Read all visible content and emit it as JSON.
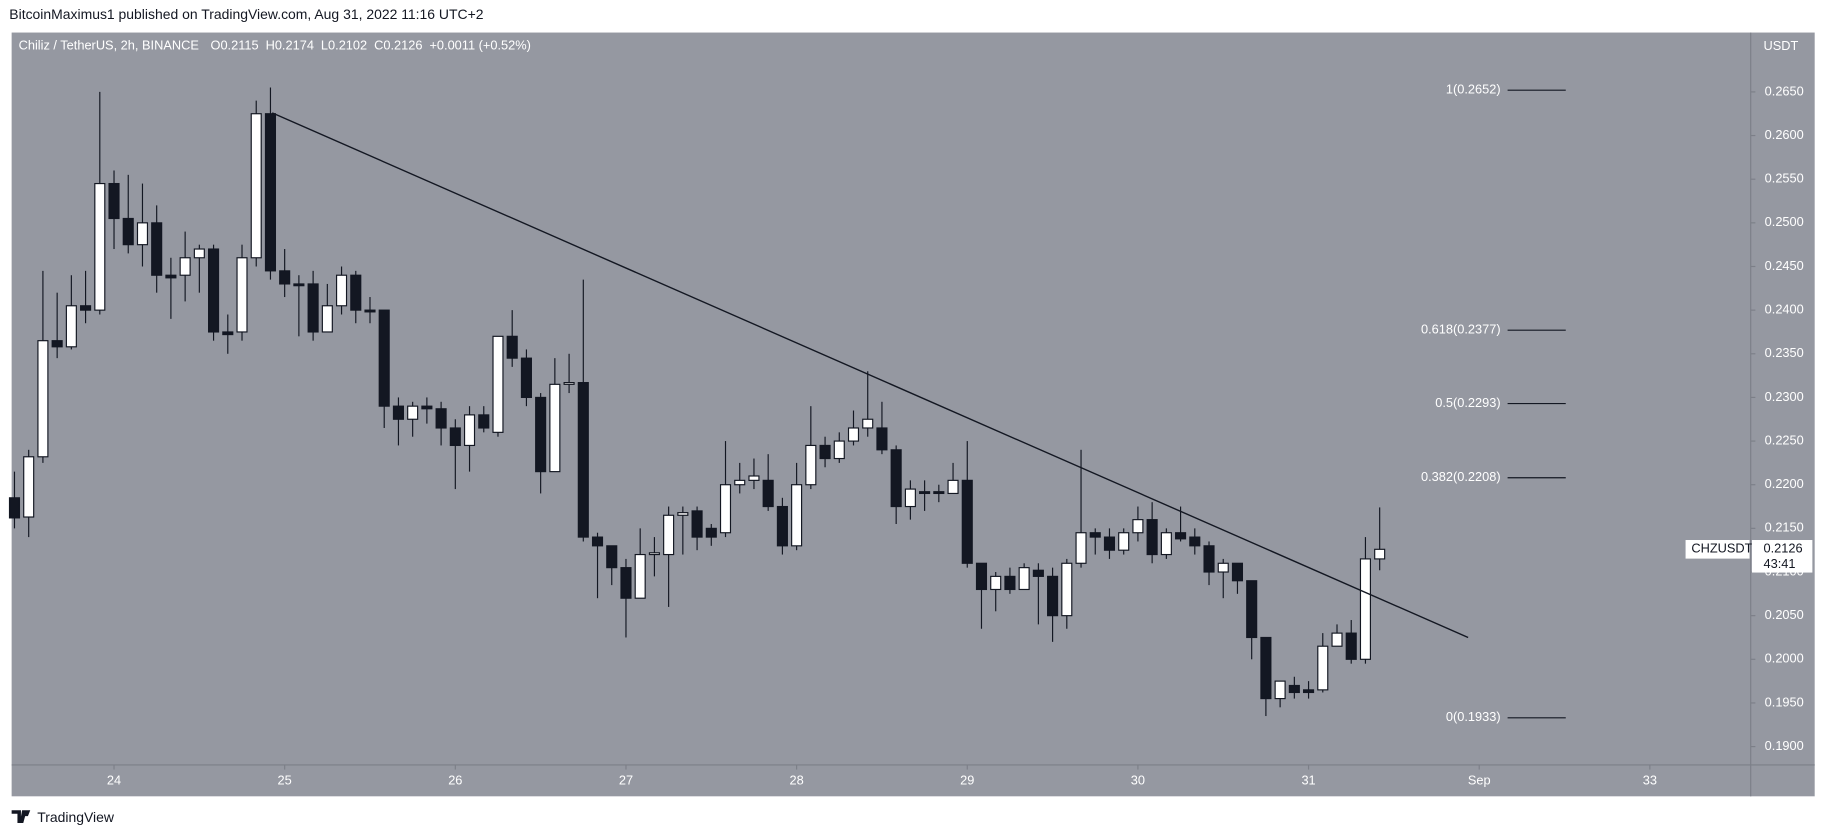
{
  "published": "BitcoinMaximus1 published on TradingView.com, Aug 31, 2022 11:16 UTC+2",
  "brand": "TradingView",
  "chart_data": {
    "type": "candlestick",
    "title": "Chiliz / TetherUS, 2h, BINANCE",
    "ohlc": [
      {
        "key": "O",
        "value": "0.2115"
      },
      {
        "key": "H",
        "value": "0.2174"
      },
      {
        "key": "L",
        "value": "0.2102"
      },
      {
        "key": "C",
        "value": "0.2126"
      }
    ],
    "change": "+0.0011 (+0.52%)",
    "y_axis_label": "USDT",
    "up_color": "#ffffff",
    "down_color": "#131722",
    "background": "#9598a1",
    "grid": false,
    "x": [
      23.4167,
      23.5,
      23.5833,
      23.6667,
      23.75,
      23.8333,
      23.9167,
      24,
      24.0833,
      24.1667,
      24.25,
      24.3333,
      24.4167,
      24.5,
      24.5833,
      24.6667,
      24.75,
      24.8333,
      24.9167,
      25,
      25.0833,
      25.1667,
      25.25,
      25.3333,
      25.4167,
      25.5,
      25.5833,
      25.6667,
      25.75,
      25.8333,
      25.9167,
      26,
      26.0833,
      26.1667,
      26.25,
      26.3333,
      26.4167,
      26.5,
      26.5833,
      26.6667,
      26.75,
      26.8333,
      26.9167,
      27,
      27.0833,
      27.1667,
      27.25,
      27.3333,
      27.4167,
      27.5,
      27.5833,
      27.6667,
      27.75,
      27.8333,
      27.9167,
      28,
      28.0833,
      28.1667,
      28.25,
      28.3333,
      28.4167,
      28.5,
      28.5833,
      28.6667,
      28.75,
      28.8333,
      28.9167,
      29,
      29.0833,
      29.1667,
      29.25,
      29.3333,
      29.4167,
      29.5,
      29.5833,
      29.6667,
      29.75,
      29.8333,
      29.9167,
      30,
      30.0833,
      30.1667,
      30.25,
      30.3333,
      30.4167,
      30.5,
      30.5833,
      30.6667,
      30.75,
      30.8333,
      30.9167,
      31,
      31.0833,
      31.1667,
      31.25,
      31.3333,
      31.4167
    ],
    "open": [
      0.2185,
      0.2163,
      0.2232,
      0.2365,
      0.2358,
      0.2405,
      0.24,
      0.2545,
      0.2505,
      0.2475,
      0.25,
      0.244,
      0.244,
      0.246,
      0.247,
      0.2375,
      0.2375,
      0.246,
      0.2625,
      0.2445,
      0.243,
      0.243,
      0.2375,
      0.2405,
      0.244,
      0.24,
      0.24,
      0.229,
      0.2275,
      0.229,
      0.2287,
      0.2265,
      0.2245,
      0.228,
      0.226,
      0.237,
      0.2345,
      0.23,
      0.2215,
      0.2315,
      0.2317,
      0.214,
      0.213,
      0.2105,
      0.207,
      0.212,
      0.212,
      0.2165,
      0.217,
      0.215,
      0.2145,
      0.22,
      0.2205,
      0.2205,
      0.2175,
      0.213,
      0.22,
      0.2245,
      0.223,
      0.225,
      0.2265,
      0.2265,
      0.224,
      0.2175,
      0.2192,
      0.2192,
      0.219,
      0.2205,
      0.211,
      0.208,
      0.2095,
      0.208,
      0.2102,
      0.2095,
      0.205,
      0.211,
      0.2145,
      0.214,
      0.2125,
      0.2145,
      0.216,
      0.212,
      0.2145,
      0.214,
      0.213,
      0.21,
      0.211,
      0.209,
      0.2025,
      0.1955,
      0.197,
      0.1965,
      0.1965,
      0.2015,
      0.203,
      0.2,
      0.2115
    ],
    "high": [
      0.2215,
      0.224,
      0.2445,
      0.242,
      0.244,
      0.2445,
      0.265,
      0.256,
      0.2555,
      0.2545,
      0.252,
      0.246,
      0.249,
      0.2475,
      0.2475,
      0.2395,
      0.2475,
      0.264,
      0.2655,
      0.247,
      0.244,
      0.2445,
      0.243,
      0.245,
      0.2445,
      0.2415,
      0.24,
      0.23,
      0.2295,
      0.23,
      0.2295,
      0.2275,
      0.229,
      0.229,
      0.237,
      0.24,
      0.2355,
      0.2305,
      0.2345,
      0.235,
      0.2435,
      0.2145,
      0.213,
      0.2115,
      0.215,
      0.214,
      0.2175,
      0.2175,
      0.2175,
      0.2155,
      0.225,
      0.2225,
      0.223,
      0.2235,
      0.2185,
      0.2225,
      0.229,
      0.2255,
      0.226,
      0.2285,
      0.233,
      0.2295,
      0.2245,
      0.2205,
      0.2205,
      0.22,
      0.2225,
      0.225,
      0.211,
      0.21,
      0.2105,
      0.211,
      0.211,
      0.2105,
      0.2115,
      0.224,
      0.215,
      0.215,
      0.215,
      0.2175,
      0.218,
      0.215,
      0.2175,
      0.215,
      0.2135,
      0.2115,
      0.211,
      0.209,
      0.2025,
      0.1975,
      0.198,
      0.1975,
      0.203,
      0.204,
      0.2045,
      0.214,
      0.2174
    ],
    "low": [
      0.215,
      0.214,
      0.2225,
      0.2345,
      0.2355,
      0.2385,
      0.2395,
      0.247,
      0.2465,
      0.245,
      0.242,
      0.239,
      0.241,
      0.242,
      0.2365,
      0.235,
      0.2365,
      0.245,
      0.2435,
      0.2415,
      0.237,
      0.2365,
      0.2375,
      0.2395,
      0.2385,
      0.2385,
      0.2265,
      0.2245,
      0.2255,
      0.227,
      0.2245,
      0.2195,
      0.2215,
      0.226,
      0.2255,
      0.2335,
      0.229,
      0.219,
      0.2215,
      0.2305,
      0.2135,
      0.207,
      0.2085,
      0.2025,
      0.207,
      0.2095,
      0.206,
      0.212,
      0.2125,
      0.213,
      0.214,
      0.219,
      0.2195,
      0.217,
      0.212,
      0.2125,
      0.2195,
      0.222,
      0.2225,
      0.2245,
      0.2255,
      0.2235,
      0.2155,
      0.216,
      0.217,
      0.218,
      0.219,
      0.2105,
      0.2035,
      0.2055,
      0.2075,
      0.208,
      0.204,
      0.202,
      0.2035,
      0.2105,
      0.212,
      0.2115,
      0.212,
      0.2135,
      0.211,
      0.2115,
      0.2135,
      0.212,
      0.2085,
      0.207,
      0.2075,
      0.2,
      0.1935,
      0.1945,
      0.1955,
      0.1955,
      0.1962,
      0.2015,
      0.1995,
      0.1995,
      0.2102
    ],
    "close": [
      0.2162,
      0.2232,
      0.2365,
      0.2358,
      0.2405,
      0.24,
      0.2545,
      0.2505,
      0.2475,
      0.25,
      0.244,
      0.2437,
      0.246,
      0.247,
      0.2375,
      0.2372,
      0.246,
      0.2625,
      0.2445,
      0.243,
      0.2428,
      0.2375,
      0.2405,
      0.244,
      0.24,
      0.2398,
      0.229,
      0.2275,
      0.229,
      0.2287,
      0.2265,
      0.2245,
      0.228,
      0.2265,
      0.237,
      0.2345,
      0.23,
      0.2215,
      0.2315,
      0.2317,
      0.214,
      0.213,
      0.2105,
      0.207,
      0.212,
      0.2122,
      0.2165,
      0.2168,
      0.214,
      0.214,
      0.22,
      0.2205,
      0.221,
      0.2175,
      0.213,
      0.22,
      0.2245,
      0.223,
      0.225,
      0.2265,
      0.2275,
      0.224,
      0.2175,
      0.2195,
      0.219,
      0.219,
      0.2205,
      0.211,
      0.208,
      0.2095,
      0.208,
      0.2105,
      0.2095,
      0.205,
      0.211,
      0.2145,
      0.214,
      0.2125,
      0.2145,
      0.216,
      0.212,
      0.2145,
      0.2138,
      0.213,
      0.21,
      0.211,
      0.209,
      0.2025,
      0.1955,
      0.1975,
      0.1962,
      0.1962,
      0.2015,
      0.203,
      0.2,
      0.2115,
      0.2126
    ],
    "xlim": [
      23.4,
      33.591
    ],
    "xticks": [
      24,
      25,
      26,
      27,
      28,
      29,
      30,
      31,
      {
        "value": 32,
        "label": "Sep"
      },
      33
    ],
    "ylim": [
      0.1879,
      0.2718
    ],
    "yticks": [
      {
        "value": 0.19,
        "label": "0.1900"
      },
      {
        "value": 0.195,
        "label": "0.1950"
      },
      {
        "value": 0.2,
        "label": "0.2000"
      },
      {
        "value": 0.205,
        "label": "0.2050"
      },
      {
        "value": 0.21,
        "label": "0.2100"
      },
      {
        "value": 0.215,
        "label": "0.2150"
      },
      {
        "value": 0.22,
        "label": "0.2200"
      },
      {
        "value": 0.225,
        "label": "0.2250"
      },
      {
        "value": 0.23,
        "label": "0.2300"
      },
      {
        "value": 0.235,
        "label": "0.2350"
      },
      {
        "value": 0.24,
        "label": "0.2400"
      },
      {
        "value": 0.245,
        "label": "0.2450"
      },
      {
        "value": 0.25,
        "label": "0.2500"
      },
      {
        "value": 0.255,
        "label": "0.2550"
      },
      {
        "value": 0.26,
        "label": "0.2600"
      },
      {
        "value": 0.265,
        "label": "0.2650"
      }
    ],
    "trendline": {
      "x": [
        24.927,
        31.935
      ],
      "y": [
        0.2626,
        0.2025
      ]
    },
    "fib_levels": [
      {
        "label": "1(0.2652)",
        "value": 0.2652
      },
      {
        "label": "0.618(0.2377)",
        "value": 0.2377
      },
      {
        "label": "0.5(0.2293)",
        "value": 0.2293
      },
      {
        "label": "0.382(0.2208)",
        "value": 0.2208
      },
      {
        "label": "0(0.1933)",
        "value": 0.1933
      }
    ],
    "price_tag": {
      "name": "CHZUSDT",
      "value": 0.2126,
      "countdown": "43:41"
    }
  }
}
